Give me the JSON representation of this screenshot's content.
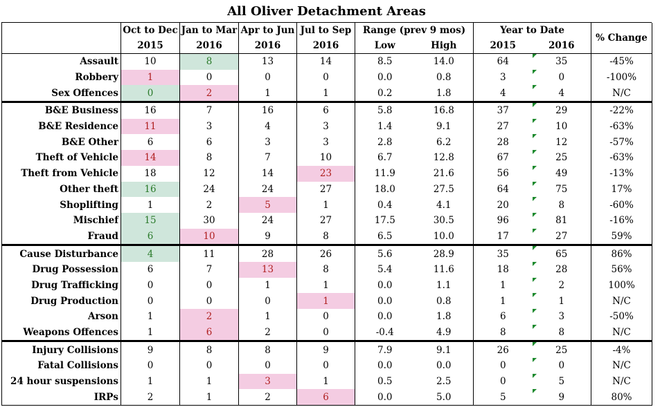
{
  "title": "All Oliver Detachment Areas",
  "header": {
    "row1": [
      "Oct to Dec",
      "Jan to Mar",
      "Apr to Jun",
      "Jul to Sep",
      "Range (prev 9 mos)",
      "Year to Date",
      "% Change"
    ],
    "row2": [
      "2015",
      "2016",
      "2016",
      "2016",
      "Low",
      "High",
      "2015",
      "2016"
    ]
  },
  "colors": {
    "high": "#f4cce2",
    "low": "#cfe6db",
    "mark": "#1e8a2e"
  },
  "rows": [
    {
      "label": "Assault",
      "v": [
        "10",
        "8",
        "13",
        "14",
        "8.5",
        "14.0",
        "64",
        "35",
        "-45%"
      ],
      "hl": [
        "",
        "low",
        "",
        "",
        "",
        "",
        "",
        "",
        ""
      ],
      "sec": false
    },
    {
      "label": "Robbery",
      "v": [
        "1",
        "0",
        "0",
        "0",
        "0.0",
        "0.8",
        "3",
        "0",
        "-100%"
      ],
      "hl": [
        "high",
        "",
        "",
        "",
        "",
        "",
        "",
        "",
        ""
      ],
      "sec": false
    },
    {
      "label": "Sex Offences",
      "v": [
        "0",
        "2",
        "1",
        "1",
        "0.2",
        "1.8",
        "4",
        "4",
        "N/C"
      ],
      "hl": [
        "low",
        "high",
        "",
        "",
        "",
        "",
        "",
        "",
        ""
      ],
      "sec": false
    },
    {
      "label": "B&E Business",
      "v": [
        "16",
        "7",
        "16",
        "6",
        "5.8",
        "16.8",
        "37",
        "29",
        "-22%"
      ],
      "hl": [
        "",
        "",
        "",
        "",
        "",
        "",
        "",
        "",
        ""
      ],
      "sec": true
    },
    {
      "label": "B&E Residence",
      "v": [
        "11",
        "3",
        "4",
        "3",
        "1.4",
        "9.1",
        "27",
        "10",
        "-63%"
      ],
      "hl": [
        "high",
        "",
        "",
        "",
        "",
        "",
        "",
        "",
        ""
      ],
      "sec": false
    },
    {
      "label": "B&E Other",
      "v": [
        "6",
        "6",
        "3",
        "3",
        "2.8",
        "6.2",
        "28",
        "12",
        "-57%"
      ],
      "hl": [
        "",
        "",
        "",
        "",
        "",
        "",
        "",
        "",
        ""
      ],
      "sec": false
    },
    {
      "label": "Theft of Vehicle",
      "v": [
        "14",
        "8",
        "7",
        "10",
        "6.7",
        "12.8",
        "67",
        "25",
        "-63%"
      ],
      "hl": [
        "high",
        "",
        "",
        "",
        "",
        "",
        "",
        "",
        ""
      ],
      "sec": false
    },
    {
      "label": "Theft from Vehicle",
      "v": [
        "18",
        "12",
        "14",
        "23",
        "11.9",
        "21.6",
        "56",
        "49",
        "-13%"
      ],
      "hl": [
        "",
        "",
        "",
        "high",
        "",
        "",
        "",
        "",
        ""
      ],
      "sec": false
    },
    {
      "label": "Other theft",
      "v": [
        "16",
        "24",
        "24",
        "27",
        "18.0",
        "27.5",
        "64",
        "75",
        "17%"
      ],
      "hl": [
        "low",
        "",
        "",
        "",
        "",
        "",
        "",
        "",
        ""
      ],
      "sec": false
    },
    {
      "label": "Shoplifting",
      "v": [
        "1",
        "2",
        "5",
        "1",
        "0.4",
        "4.1",
        "20",
        "8",
        "-60%"
      ],
      "hl": [
        "",
        "",
        "high",
        "",
        "",
        "",
        "",
        "",
        ""
      ],
      "sec": false
    },
    {
      "label": "Mischief",
      "v": [
        "15",
        "30",
        "24",
        "27",
        "17.5",
        "30.5",
        "96",
        "81",
        "-16%"
      ],
      "hl": [
        "low",
        "",
        "",
        "",
        "",
        "",
        "",
        "",
        ""
      ],
      "sec": false
    },
    {
      "label": "Fraud",
      "v": [
        "6",
        "10",
        "9",
        "8",
        "6.5",
        "10.0",
        "17",
        "27",
        "59%"
      ],
      "hl": [
        "low",
        "high",
        "",
        "",
        "",
        "",
        "",
        "",
        ""
      ],
      "sec": false
    },
    {
      "label": "Cause Disturbance",
      "v": [
        "4",
        "11",
        "28",
        "26",
        "5.6",
        "28.9",
        "35",
        "65",
        "86%"
      ],
      "hl": [
        "low",
        "",
        "",
        "",
        "",
        "",
        "",
        "",
        ""
      ],
      "sec": true
    },
    {
      "label": "Drug Possession",
      "v": [
        "6",
        "7",
        "13",
        "8",
        "5.4",
        "11.6",
        "18",
        "28",
        "56%"
      ],
      "hl": [
        "",
        "",
        "high",
        "",
        "",
        "",
        "",
        "",
        ""
      ],
      "sec": false
    },
    {
      "label": "Drug Trafficking",
      "v": [
        "0",
        "0",
        "1",
        "1",
        "0.0",
        "1.1",
        "1",
        "2",
        "100%"
      ],
      "hl": [
        "",
        "",
        "",
        "",
        "",
        "",
        "",
        "",
        ""
      ],
      "sec": false
    },
    {
      "label": "Drug Production",
      "v": [
        "0",
        "0",
        "0",
        "1",
        "0.0",
        "0.8",
        "1",
        "1",
        "N/C"
      ],
      "hl": [
        "",
        "",
        "",
        "high",
        "",
        "",
        "",
        "",
        ""
      ],
      "sec": false
    },
    {
      "label": "Arson",
      "v": [
        "1",
        "2",
        "1",
        "0",
        "0.0",
        "1.8",
        "6",
        "3",
        "-50%"
      ],
      "hl": [
        "",
        "high",
        "",
        "",
        "",
        "",
        "",
        "",
        ""
      ],
      "sec": false
    },
    {
      "label": "Weapons Offences",
      "v": [
        "1",
        "6",
        "2",
        "0",
        "-0.4",
        "4.9",
        "8",
        "8",
        "N/C"
      ],
      "hl": [
        "",
        "high",
        "",
        "",
        "",
        "",
        "",
        "",
        ""
      ],
      "sec": false
    },
    {
      "label": "Injury Collisions",
      "v": [
        "9",
        "8",
        "8",
        "9",
        "7.9",
        "9.1",
        "26",
        "25",
        "-4%"
      ],
      "hl": [
        "",
        "",
        "",
        "",
        "",
        "",
        "",
        "",
        ""
      ],
      "sec": true
    },
    {
      "label": "Fatal Collisions",
      "v": [
        "0",
        "0",
        "0",
        "0",
        "0.0",
        "0.0",
        "0",
        "0",
        "N/C"
      ],
      "hl": [
        "",
        "",
        "",
        "",
        "",
        "",
        "",
        "",
        ""
      ],
      "sec": false
    },
    {
      "label": "24 hour suspensions",
      "v": [
        "1",
        "1",
        "3",
        "1",
        "0.5",
        "2.5",
        "0",
        "5",
        "N/C"
      ],
      "hl": [
        "",
        "",
        "high",
        "",
        "",
        "",
        "",
        "",
        ""
      ],
      "sec": false
    },
    {
      "label": "IRPs",
      "v": [
        "2",
        "1",
        "2",
        "6",
        "0.0",
        "5.0",
        "5",
        "9",
        "80%"
      ],
      "hl": [
        "",
        "",
        "",
        "high",
        "",
        "",
        "",
        "",
        ""
      ],
      "sec": false
    }
  ]
}
